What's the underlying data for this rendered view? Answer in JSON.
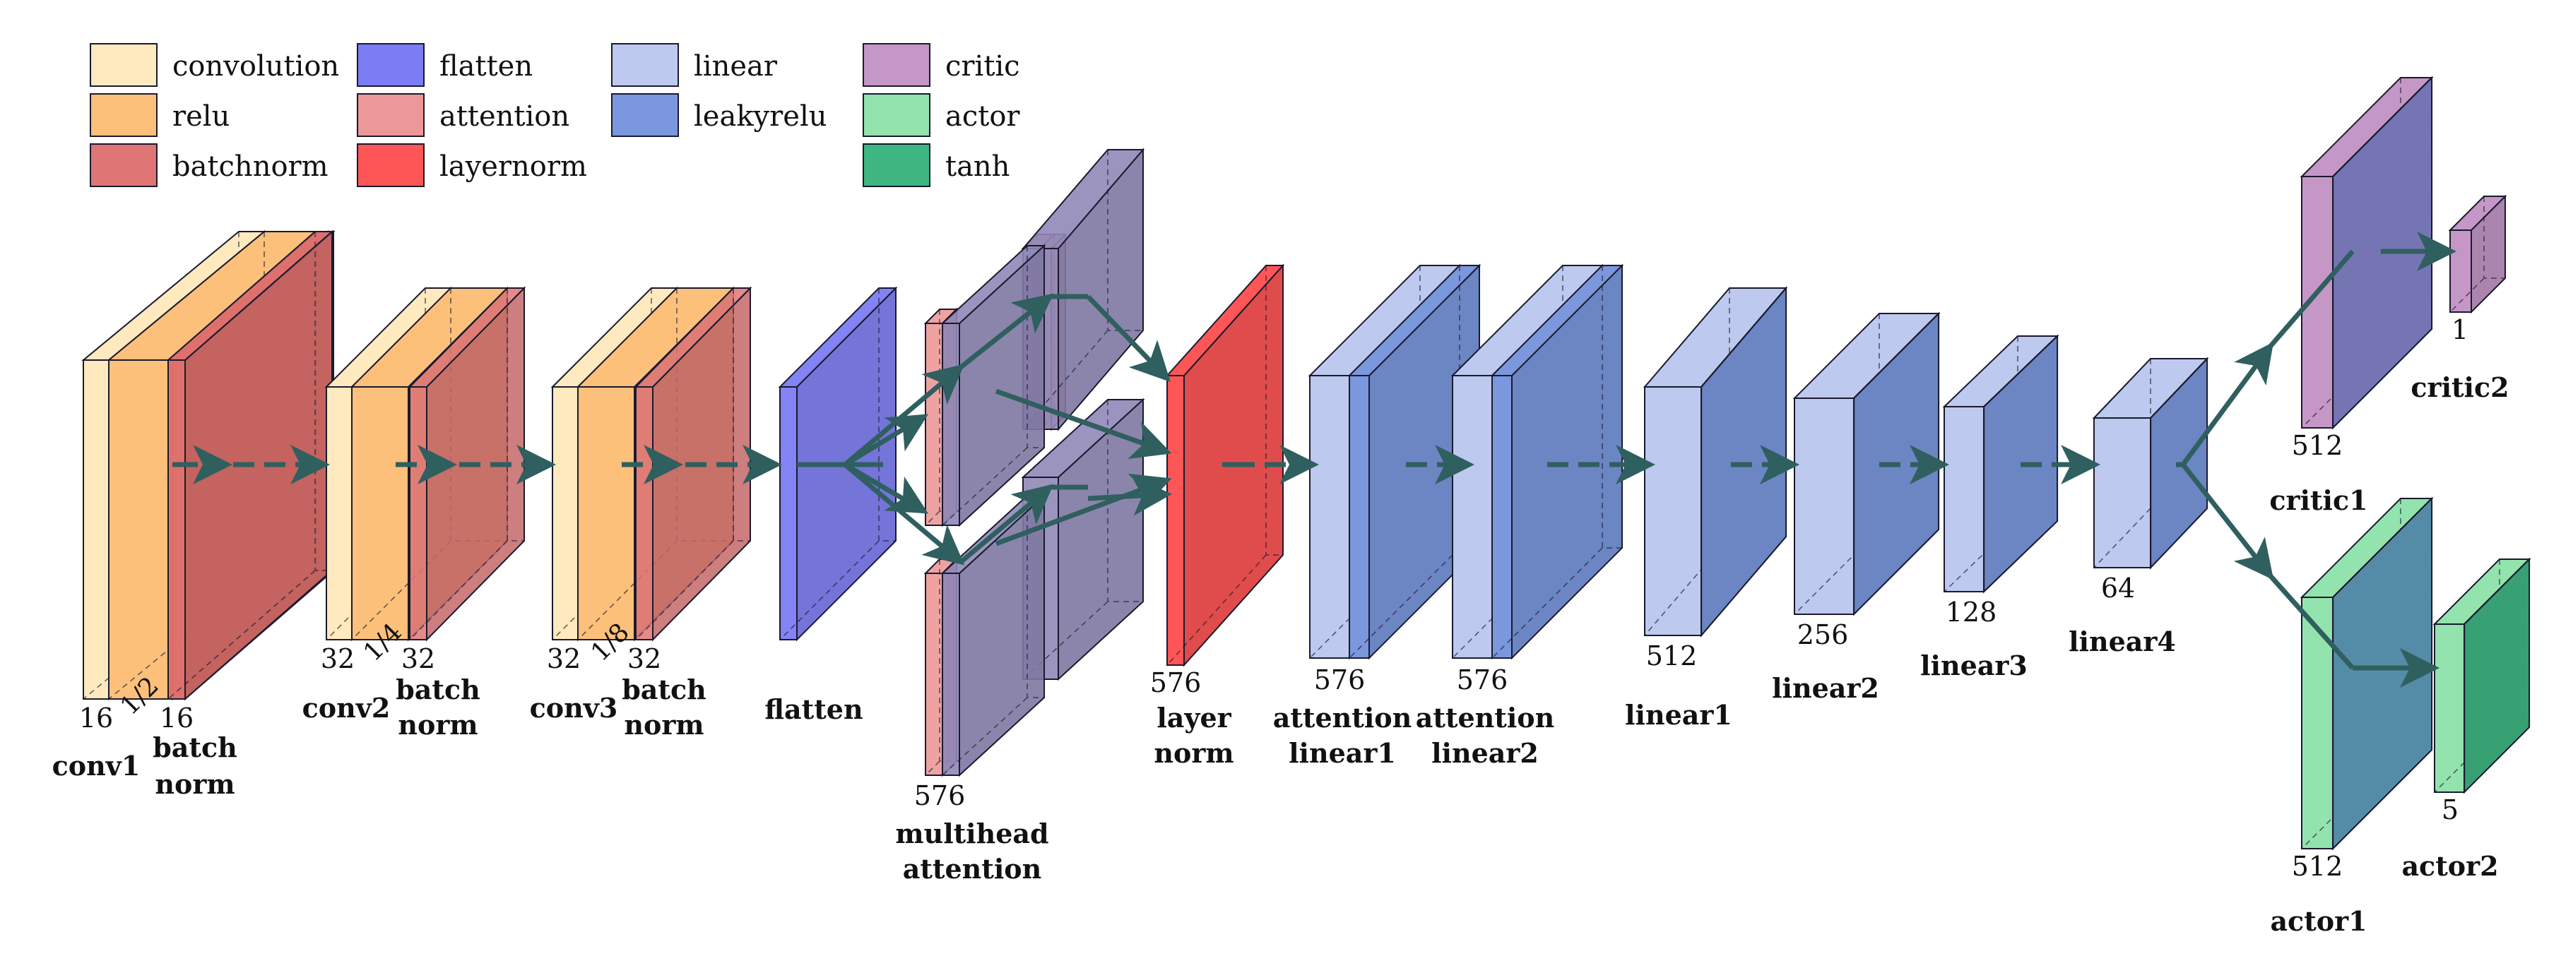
{
  "legend": [
    {
      "label": "convolution",
      "color": "#FFE9BF"
    },
    {
      "label": "relu",
      "color": "#FDC07A"
    },
    {
      "label": "batchnorm",
      "color": "#DF7575"
    },
    {
      "label": "flatten",
      "color": "#7C7CF4"
    },
    {
      "label": "attention",
      "color": "#EC9898"
    },
    {
      "label": "layernorm",
      "color": "#FE5656"
    },
    {
      "label": "linear",
      "color": "#BDC9EE"
    },
    {
      "label": "leakyrelu",
      "color": "#7B97DE"
    },
    {
      "label": "critic",
      "color": "#C497C6"
    },
    {
      "label": "actor",
      "color": "#93E3AE"
    },
    {
      "label": "tanh",
      "color": "#3EB783"
    }
  ],
  "layers": {
    "conv1": {
      "name": "conv1",
      "size": "16"
    },
    "bn1": {
      "name": [
        "batch",
        "norm"
      ],
      "size": "16",
      "scale": "1/2"
    },
    "conv2": {
      "name": "conv2",
      "size": "32"
    },
    "bn2": {
      "name": [
        "batch",
        "norm"
      ],
      "size": "32",
      "scale": "1/4"
    },
    "conv3": {
      "name": "conv3",
      "size": "32"
    },
    "bn3": {
      "name": [
        "batch",
        "norm"
      ],
      "size": "32",
      "scale": "1/8"
    },
    "flatten": {
      "name": "flatten"
    },
    "mha": {
      "name": [
        "multihead",
        "attention"
      ],
      "size": "576"
    },
    "ln": {
      "name": [
        "layer",
        "norm"
      ],
      "size": "576"
    },
    "att1": {
      "name": [
        "attention",
        "linear1"
      ],
      "size": "576"
    },
    "att2": {
      "name": [
        "attention",
        "linear2"
      ],
      "size": "576"
    },
    "lin1": {
      "name": "linear1",
      "size": "512"
    },
    "lin2": {
      "name": "linear2",
      "size": "256"
    },
    "lin3": {
      "name": "linear3",
      "size": "128"
    },
    "lin4": {
      "name": "linear4",
      "size": "64"
    },
    "critic1": {
      "name": "critic1",
      "size": "512"
    },
    "critic2": {
      "name": "critic2",
      "size": "1"
    },
    "actor1": {
      "name": "actor1",
      "size": "512"
    },
    "actor2": {
      "name": "actor2",
      "size": "5"
    }
  },
  "colors": {
    "arrow": "#2F5F5F",
    "edge": "#1A1A2E"
  }
}
